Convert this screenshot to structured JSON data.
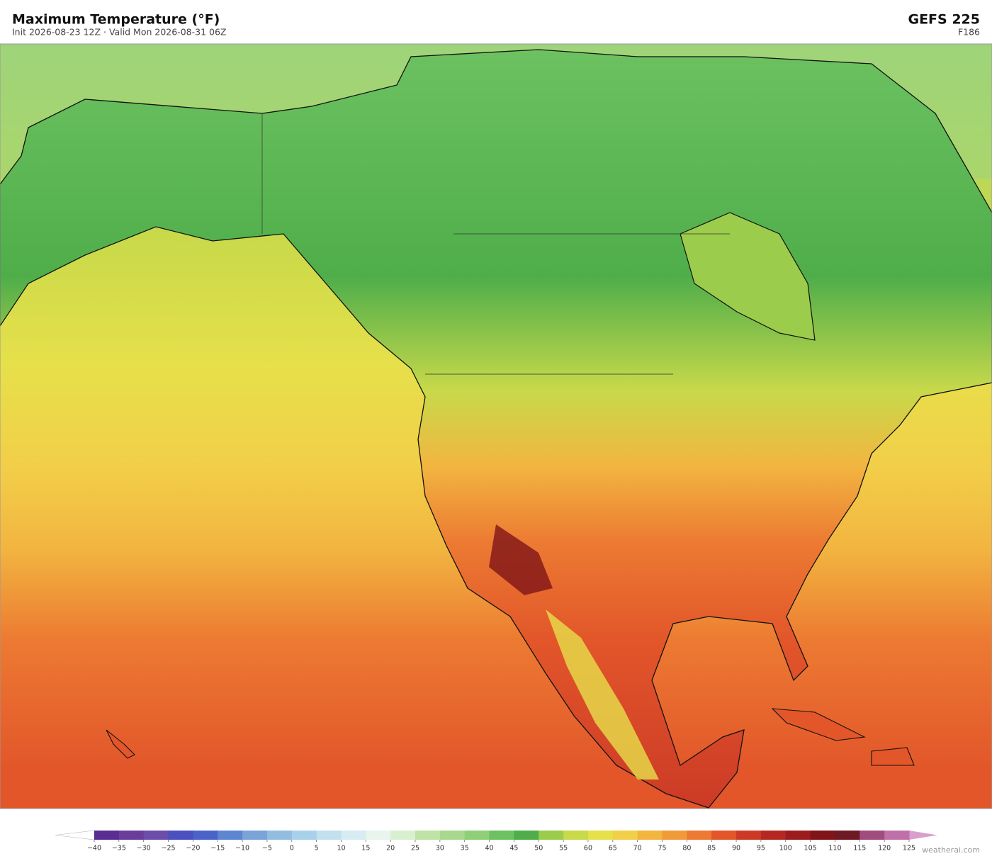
{
  "header": {
    "title": "Maximum Temperature  (°F)",
    "subtitle": "Init 2026-08-23 12Z   ·   Valid Mon 2026-08-31 06Z",
    "model": "GEFS  225",
    "forecast_hour": "F186"
  },
  "colorbar": {
    "ticks": [
      {
        "value": -40,
        "label": "−40"
      },
      {
        "value": -35,
        "label": "−35"
      },
      {
        "value": -30,
        "label": "−30"
      },
      {
        "value": -25,
        "label": "−25"
      },
      {
        "value": -20,
        "label": "−20"
      },
      {
        "value": -15,
        "label": "−15"
      },
      {
        "value": -10,
        "label": "−10"
      },
      {
        "value": -5,
        "label": "−5"
      },
      0,
      5,
      10,
      15,
      20,
      25,
      30,
      35,
      40,
      45,
      50,
      55,
      60,
      65,
      70,
      75,
      80,
      85,
      90,
      95,
      100,
      105,
      110,
      115,
      120,
      125
    ],
    "colors": [
      "#5a2d91",
      "#6a3d9a",
      "#6c4ea8",
      "#4c4fc0",
      "#4a63c8",
      "#5d86d0",
      "#7aa3d8",
      "#92bde0",
      "#a8d0ea",
      "#c2e0ee",
      "#d6ecf2",
      "#e8f5ee",
      "#d8efd0",
      "#bfe3a6",
      "#a7d88d",
      "#8fcf78",
      "#6cc160",
      "#4fae4a",
      "#9ccc4c",
      "#c8d94a",
      "#e6e04a",
      "#f2cf48",
      "#f2b540",
      "#f09a3a",
      "#ec7a32",
      "#e2562a",
      "#cc3a26",
      "#b52822",
      "#9c1c1e",
      "#801418",
      "#6e1a24",
      "#a04c7c",
      "#c070a8"
    ],
    "under_color": "#ffffff",
    "over_color": "#d8a0cc"
  },
  "credit": "weatherai.com"
}
